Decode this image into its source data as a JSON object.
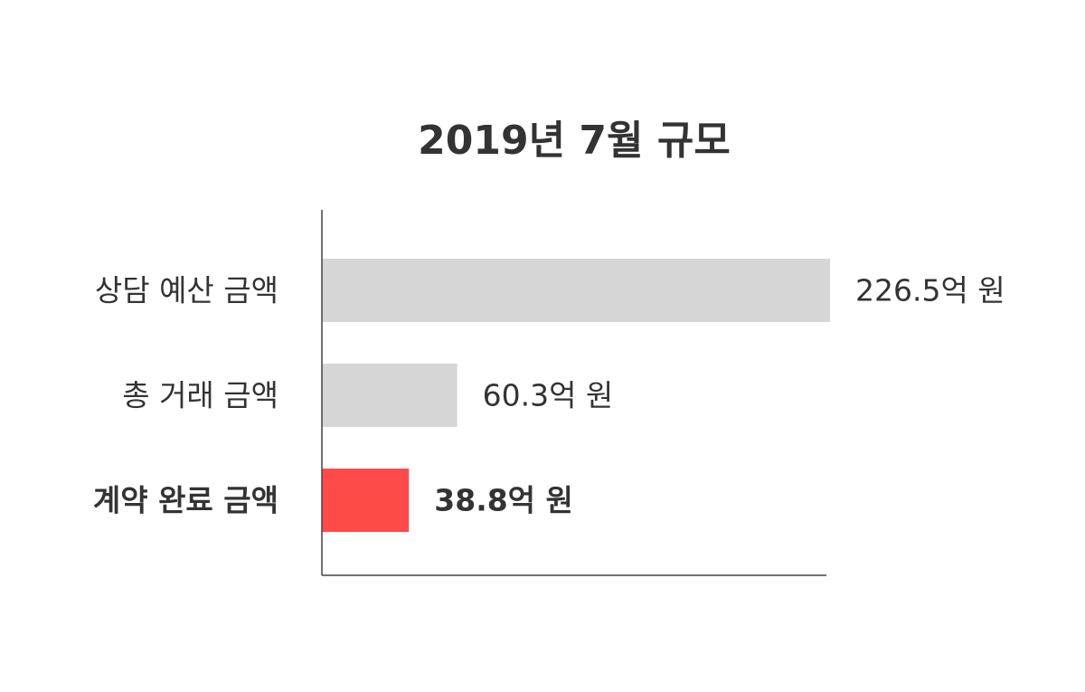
{
  "chart_data": {
    "type": "bar",
    "orientation": "horizontal",
    "title": "2019년 7월 규모",
    "xlabel": "",
    "ylabel": "",
    "categories": [
      "상담 예산 금액",
      "총 거래 금액",
      "계약 완료 금액"
    ],
    "values": [
      226.5,
      60.3,
      38.8
    ],
    "value_labels": [
      "226.5억 원",
      "60.3억 원",
      "38.8억 원"
    ],
    "unit": "억 원",
    "xlim": [
      0,
      226.5
    ],
    "highlight_index": 2,
    "grid": false,
    "legend": "none"
  },
  "colors": {
    "bar": "#d6d6d6",
    "highlight": "#ff4a4a",
    "text": "#333333",
    "axis": "#444444"
  }
}
